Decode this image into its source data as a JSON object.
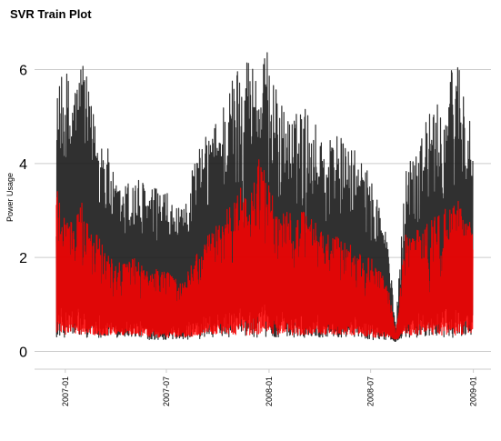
{
  "chart_data": {
    "type": "line",
    "title": "SVR Train Plot",
    "xlabel": "",
    "ylabel": "Power Usage",
    "x_range": [
      "2006-12-16",
      "2008-12-31"
    ],
    "ylim": [
      -0.3,
      6.9
    ],
    "y_ticks": [
      0,
      2,
      4,
      6
    ],
    "y_tick_labels": [
      "0",
      "2",
      "4",
      "6"
    ],
    "x_ticks": [
      "2007-01-01",
      "2007-07-01",
      "2008-01-01",
      "2008-07-01",
      "2009-01-01"
    ],
    "x_tick_labels": [
      "2007-01",
      "2007-07",
      "2008-01",
      "2008-07",
      "2009-01"
    ],
    "grid": "horizontal",
    "legend": "none",
    "colors": {
      "actual": "#1a1a1a",
      "predicted": "#ff0000",
      "grid": "#cccccc",
      "axis": "#cccccc"
    },
    "series": [
      {
        "color": "#1a1a1a",
        "x": [
          "2006-12-16",
          "2007-01-01",
          "2007-01-15",
          "2007-02-01",
          "2007-02-15",
          "2007-03-01",
          "2007-03-15",
          "2007-04-01",
          "2007-04-15",
          "2007-05-01",
          "2007-05-15",
          "2007-06-01",
          "2007-06-15",
          "2007-07-01",
          "2007-07-15",
          "2007-08-01",
          "2007-08-15",
          "2007-09-01",
          "2007-09-15",
          "2007-10-01",
          "2007-10-15",
          "2007-11-01",
          "2007-11-15",
          "2007-12-01",
          "2007-12-15",
          "2008-01-01",
          "2008-01-15",
          "2008-02-01",
          "2008-02-15",
          "2008-03-01",
          "2008-03-15",
          "2008-04-01",
          "2008-04-15",
          "2008-05-01",
          "2008-05-15",
          "2008-06-01",
          "2008-06-15",
          "2008-07-01",
          "2008-07-15",
          "2008-08-01",
          "2008-08-15",
          "2008-09-01",
          "2008-09-15",
          "2008-10-01",
          "2008-10-15",
          "2008-11-01",
          "2008-11-15",
          "2008-12-01",
          "2008-12-15",
          "2008-12-31"
        ],
        "y_min": [
          0.3,
          0.3,
          0.3,
          0.3,
          0.3,
          0.3,
          0.3,
          0.3,
          0.3,
          0.3,
          0.3,
          0.25,
          0.25,
          0.25,
          0.25,
          0.25,
          0.25,
          0.25,
          0.3,
          0.3,
          0.3,
          0.3,
          0.3,
          0.3,
          0.3,
          0.3,
          0.3,
          0.3,
          0.3,
          0.3,
          0.3,
          0.3,
          0.3,
          0.3,
          0.3,
          0.3,
          0.3,
          0.25,
          0.25,
          0.25,
          0.2,
          0.3,
          0.3,
          0.3,
          0.3,
          0.3,
          0.3,
          0.3,
          0.3,
          0.3
        ],
        "y_max": [
          5.5,
          6.1,
          5.6,
          6.4,
          5.3,
          4.9,
          4.5,
          3.6,
          3.5,
          3.8,
          3.7,
          3.5,
          3.5,
          3.4,
          3.1,
          3.0,
          4.0,
          4.4,
          4.7,
          5.0,
          5.5,
          6.0,
          6.5,
          6.3,
          6.0,
          6.5,
          5.5,
          5.1,
          5.0,
          5.3,
          5.1,
          4.7,
          4.5,
          4.8,
          4.4,
          4.3,
          4.1,
          3.7,
          3.3,
          2.4,
          0.5,
          3.9,
          4.4,
          4.9,
          5.1,
          5.3,
          5.5,
          6.6,
          5.7,
          4.5
        ]
      },
      {
        "color": "#ff0000",
        "x": [
          "2006-12-16",
          "2007-01-01",
          "2007-01-15",
          "2007-02-01",
          "2007-02-15",
          "2007-03-01",
          "2007-03-15",
          "2007-04-01",
          "2007-04-15",
          "2007-05-01",
          "2007-05-15",
          "2007-06-01",
          "2007-06-15",
          "2007-07-01",
          "2007-07-15",
          "2007-08-01",
          "2007-08-15",
          "2007-09-01",
          "2007-09-15",
          "2007-10-01",
          "2007-10-15",
          "2007-11-01",
          "2007-11-15",
          "2007-12-01",
          "2007-12-15",
          "2008-01-01",
          "2008-01-15",
          "2008-02-01",
          "2008-02-15",
          "2008-03-01",
          "2008-03-15",
          "2008-04-01",
          "2008-04-15",
          "2008-05-01",
          "2008-05-15",
          "2008-06-01",
          "2008-06-15",
          "2008-07-01",
          "2008-07-15",
          "2008-08-01",
          "2008-08-15",
          "2008-09-01",
          "2008-09-15",
          "2008-10-01",
          "2008-10-15",
          "2008-11-01",
          "2008-11-15",
          "2008-12-01",
          "2008-12-15",
          "2008-12-31"
        ],
        "y_min": [
          0.35,
          0.35,
          0.35,
          0.35,
          0.35,
          0.35,
          0.35,
          0.35,
          0.35,
          0.35,
          0.35,
          0.3,
          0.3,
          0.3,
          0.3,
          0.3,
          0.3,
          0.3,
          0.35,
          0.35,
          0.35,
          0.35,
          0.35,
          0.35,
          0.35,
          0.35,
          0.35,
          0.35,
          0.35,
          0.35,
          0.35,
          0.35,
          0.35,
          0.35,
          0.35,
          0.35,
          0.35,
          0.3,
          0.3,
          0.3,
          0.25,
          0.35,
          0.35,
          0.35,
          0.35,
          0.35,
          0.35,
          0.35,
          0.35,
          0.35
        ],
        "y_max": [
          3.8,
          3.0,
          2.8,
          3.2,
          2.6,
          2.5,
          2.2,
          2.0,
          1.9,
          2.0,
          1.9,
          1.8,
          1.8,
          1.7,
          1.6,
          1.5,
          1.9,
          2.2,
          2.5,
          2.8,
          3.0,
          3.2,
          3.6,
          3.4,
          4.2,
          3.6,
          3.0,
          3.0,
          2.9,
          3.0,
          2.9,
          2.6,
          2.5,
          2.5,
          2.4,
          2.3,
          2.1,
          2.0,
          1.8,
          1.4,
          0.4,
          2.5,
          2.6,
          2.7,
          2.8,
          2.9,
          3.1,
          3.4,
          3.3,
          2.6
        ]
      }
    ]
  }
}
